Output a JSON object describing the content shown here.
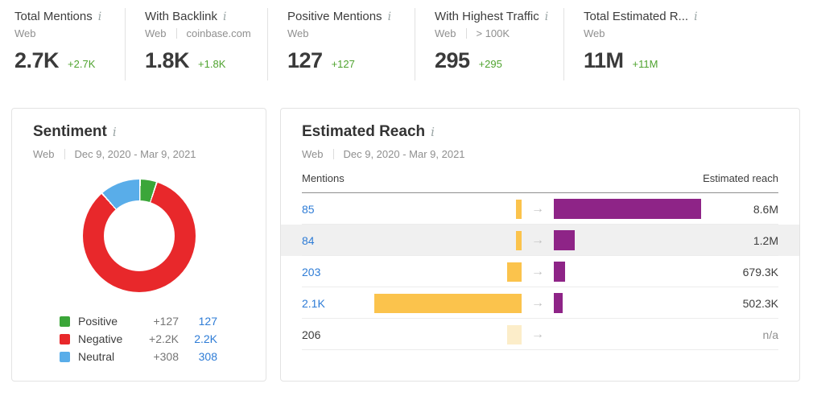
{
  "colors": {
    "positive_green": "#3ba639",
    "negative_red": "#e8282b",
    "neutral_blue": "#59ade9",
    "delta_green": "#4fa32f",
    "link_blue": "#2e7cd6",
    "mentions_bar_yellow": "#fbc34c",
    "mentions_bar_muted": "#fcedc9",
    "reach_bar_purple": "#8e2487"
  },
  "stats": [
    {
      "title": "Total Mentions",
      "source": "Web",
      "filter": null,
      "value": "2.7K",
      "delta": "+2.7K"
    },
    {
      "title": "With Backlink",
      "source": "Web",
      "filter": "coinbase.com",
      "value": "1.8K",
      "delta": "+1.8K"
    },
    {
      "title": "Positive Mentions",
      "source": "Web",
      "filter": null,
      "value": "127",
      "delta": "+127"
    },
    {
      "title": "With Highest Traffic",
      "source": "Web",
      "filter": "> 100K",
      "value": "295",
      "delta": "+295"
    },
    {
      "title": "Total Estimated R...",
      "source": "Web",
      "filter": null,
      "value": "11M",
      "delta": "+11M"
    }
  ],
  "sentiment": {
    "title": "Sentiment",
    "source": "Web",
    "date_range": "Dec 9, 2020 - Mar 9, 2021",
    "segments": [
      {
        "label": "Positive",
        "delta": "+127",
        "value_label": "127",
        "value": 127,
        "color": "#3ba639"
      },
      {
        "label": "Negative",
        "delta": "+2.2K",
        "value_label": "2.2K",
        "value": 2200,
        "color": "#e8282b"
      },
      {
        "label": "Neutral",
        "delta": "+308",
        "value_label": "308",
        "value": 308,
        "color": "#59ade9"
      }
    ]
  },
  "estimated_reach": {
    "title": "Estimated Reach",
    "source": "Web",
    "date_range": "Dec 9, 2020 - Mar 9, 2021",
    "col_mentions": "Mentions",
    "col_reach": "Estimated reach",
    "rows": [
      {
        "mentions_label": "85",
        "mentions_value": 85,
        "reach_label": "8.6M",
        "reach_value": 8600000,
        "highlighted": false,
        "muted": false
      },
      {
        "mentions_label": "84",
        "mentions_value": 84,
        "reach_label": "1.2M",
        "reach_value": 1200000,
        "highlighted": true,
        "muted": false
      },
      {
        "mentions_label": "203",
        "mentions_value": 203,
        "reach_label": "679.3K",
        "reach_value": 679300,
        "highlighted": false,
        "muted": false
      },
      {
        "mentions_label": "2.1K",
        "mentions_value": 2100,
        "reach_label": "502.3K",
        "reach_value": 502300,
        "highlighted": false,
        "muted": false
      },
      {
        "mentions_label": "206",
        "mentions_value": 206,
        "reach_label": "n/a",
        "reach_value": null,
        "highlighted": false,
        "muted": true
      }
    ]
  },
  "chart_data": [
    {
      "type": "pie",
      "title": "Sentiment",
      "categories": [
        "Positive",
        "Negative",
        "Neutral"
      ],
      "values": [
        127,
        2200,
        308
      ],
      "colors": [
        "#3ba639",
        "#e8282b",
        "#59ade9"
      ],
      "legend_position": "bottom-left",
      "donut": true
    },
    {
      "type": "table",
      "title": "Estimated Reach",
      "columns": [
        "Mentions",
        "Estimated reach"
      ],
      "rows": [
        [
          85,
          8600000
        ],
        [
          84,
          1200000
        ],
        [
          203,
          679300
        ],
        [
          2100,
          502300
        ],
        [
          206,
          null
        ]
      ],
      "row_labels": [
        [
          "85",
          "8.6M"
        ],
        [
          "84",
          "1.2M"
        ],
        [
          "203",
          "679.3K"
        ],
        [
          "2.1K",
          "502.3K"
        ],
        [
          "206",
          "n/a"
        ]
      ]
    }
  ]
}
